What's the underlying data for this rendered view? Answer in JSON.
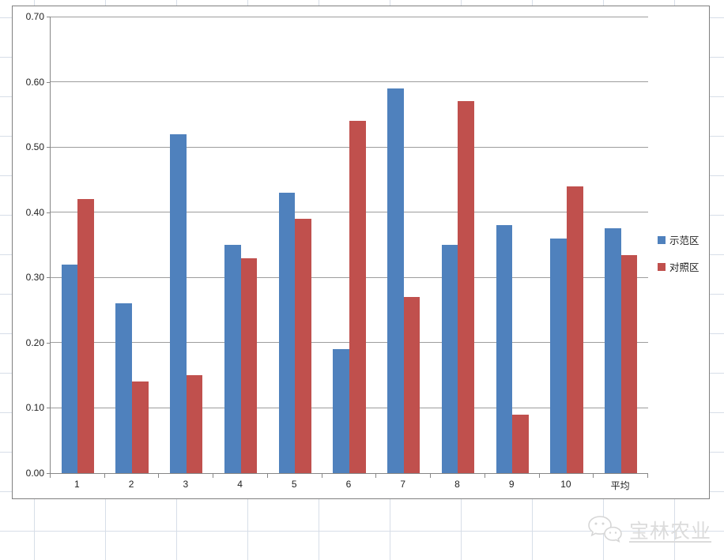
{
  "chart_data": {
    "type": "bar",
    "title": "",
    "xlabel": "",
    "ylabel": "",
    "categories": [
      "1",
      "2",
      "3",
      "4",
      "5",
      "6",
      "7",
      "8",
      "9",
      "10",
      "平均"
    ],
    "series": [
      {
        "name": "示范区",
        "color": "#4F81BD",
        "values": [
          0.32,
          0.26,
          0.52,
          0.35,
          0.43,
          0.19,
          0.59,
          0.35,
          0.38,
          0.36,
          0.375
        ]
      },
      {
        "name": "对照区",
        "color": "#C0504D",
        "values": [
          0.42,
          0.14,
          0.15,
          0.33,
          0.39,
          0.54,
          0.27,
          0.57,
          0.09,
          0.44,
          0.334
        ]
      }
    ],
    "ylim": [
      0,
      0.7
    ],
    "ytick_step": 0.1,
    "yticks": [
      "0.00",
      "0.10",
      "0.20",
      "0.30",
      "0.40",
      "0.50",
      "0.60",
      "0.70"
    ],
    "grid": true,
    "legend_position": "right"
  },
  "watermark": {
    "text": "宝林农业",
    "icon": "wechat-icon"
  },
  "colors": {
    "series1": "#4F81BD",
    "series2": "#C0504D",
    "gridline": "#9d9d9d",
    "axis": "#868686",
    "sheet_grid": "#d7dee8",
    "watermark": "#dcdcdc"
  }
}
